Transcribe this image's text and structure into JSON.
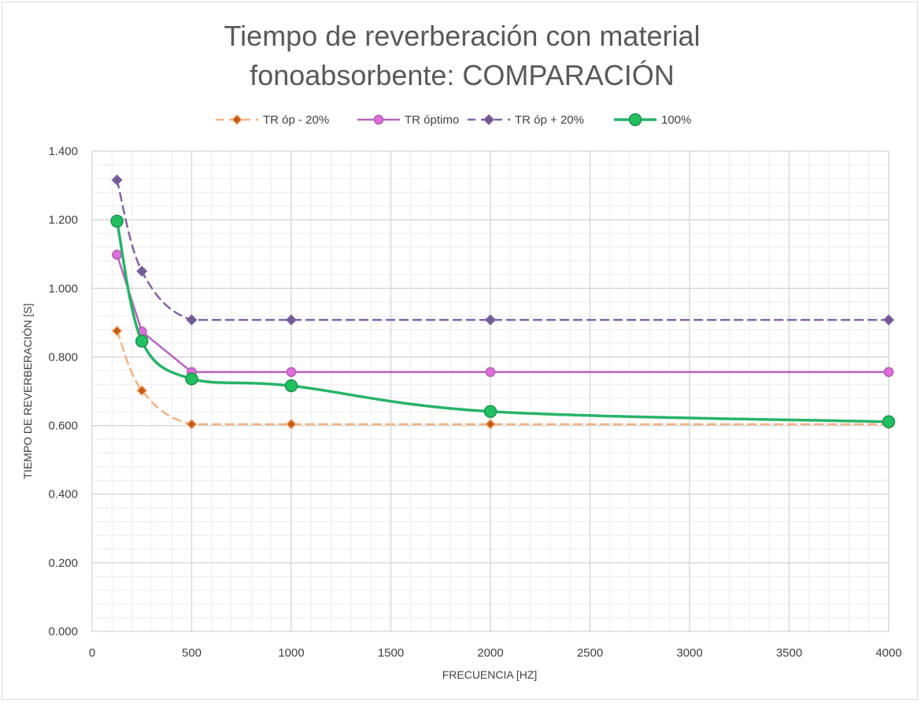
{
  "chart_data": {
    "type": "line",
    "title_lines": [
      "Tiempo de reverberación con material",
      "fonoabsorbente: COMPARACIÓN"
    ],
    "xlabel": "FRECUENCIA [HZ]",
    "ylabel": "TIEMPO DE REVERBERACIÓN [S]",
    "xlim": [
      0,
      4000
    ],
    "ylim": [
      0,
      1.4
    ],
    "x_ticks": [
      0,
      500,
      1000,
      1500,
      2000,
      2500,
      3000,
      3500,
      4000
    ],
    "x_tick_labels": [
      "0",
      "500",
      "1000",
      "1500",
      "2000",
      "2500",
      "3000",
      "3500",
      "4000"
    ],
    "y_ticks": [
      0,
      0.2,
      0.4,
      0.6,
      0.8,
      1.0,
      1.2,
      1.4
    ],
    "y_tick_labels": [
      "0.000",
      "0.200",
      "0.400",
      "0.600",
      "0.800",
      "1.000",
      "1.200",
      "1.400"
    ],
    "grid": true,
    "minor_grid": true,
    "legend_position": "top",
    "x": [
      125,
      250,
      500,
      1000,
      2000,
      4000
    ],
    "series": [
      {
        "name": "TR óp - 20%",
        "values": [
          0.876,
          0.702,
          0.604,
          0.604,
          0.604,
          0.604
        ],
        "color": "#F4B183",
        "marker_color": "#C55A11",
        "dash": true,
        "marker": "diamond",
        "smooth": true
      },
      {
        "name": "TR óptimo",
        "values": [
          1.098,
          0.874,
          0.756,
          0.756,
          0.756,
          0.756
        ],
        "color": "#B565B8",
        "marker_color": "#E26CDD",
        "dash": false,
        "marker": "circle",
        "smooth": false
      },
      {
        "name": "TR óp + 20%",
        "values": [
          1.316,
          1.05,
          0.908,
          0.908,
          0.908,
          0.908
        ],
        "color": "#8064A2",
        "marker_color": "#6F5A92",
        "dash": true,
        "marker": "diamond",
        "smooth": true
      },
      {
        "name": "100%",
        "values": [
          1.196,
          0.846,
          0.736,
          0.716,
          0.641,
          0.611
        ],
        "color": "#27B36A",
        "marker_color": "#20C060",
        "dash": false,
        "marker": "circle-large",
        "smooth": true
      }
    ]
  }
}
